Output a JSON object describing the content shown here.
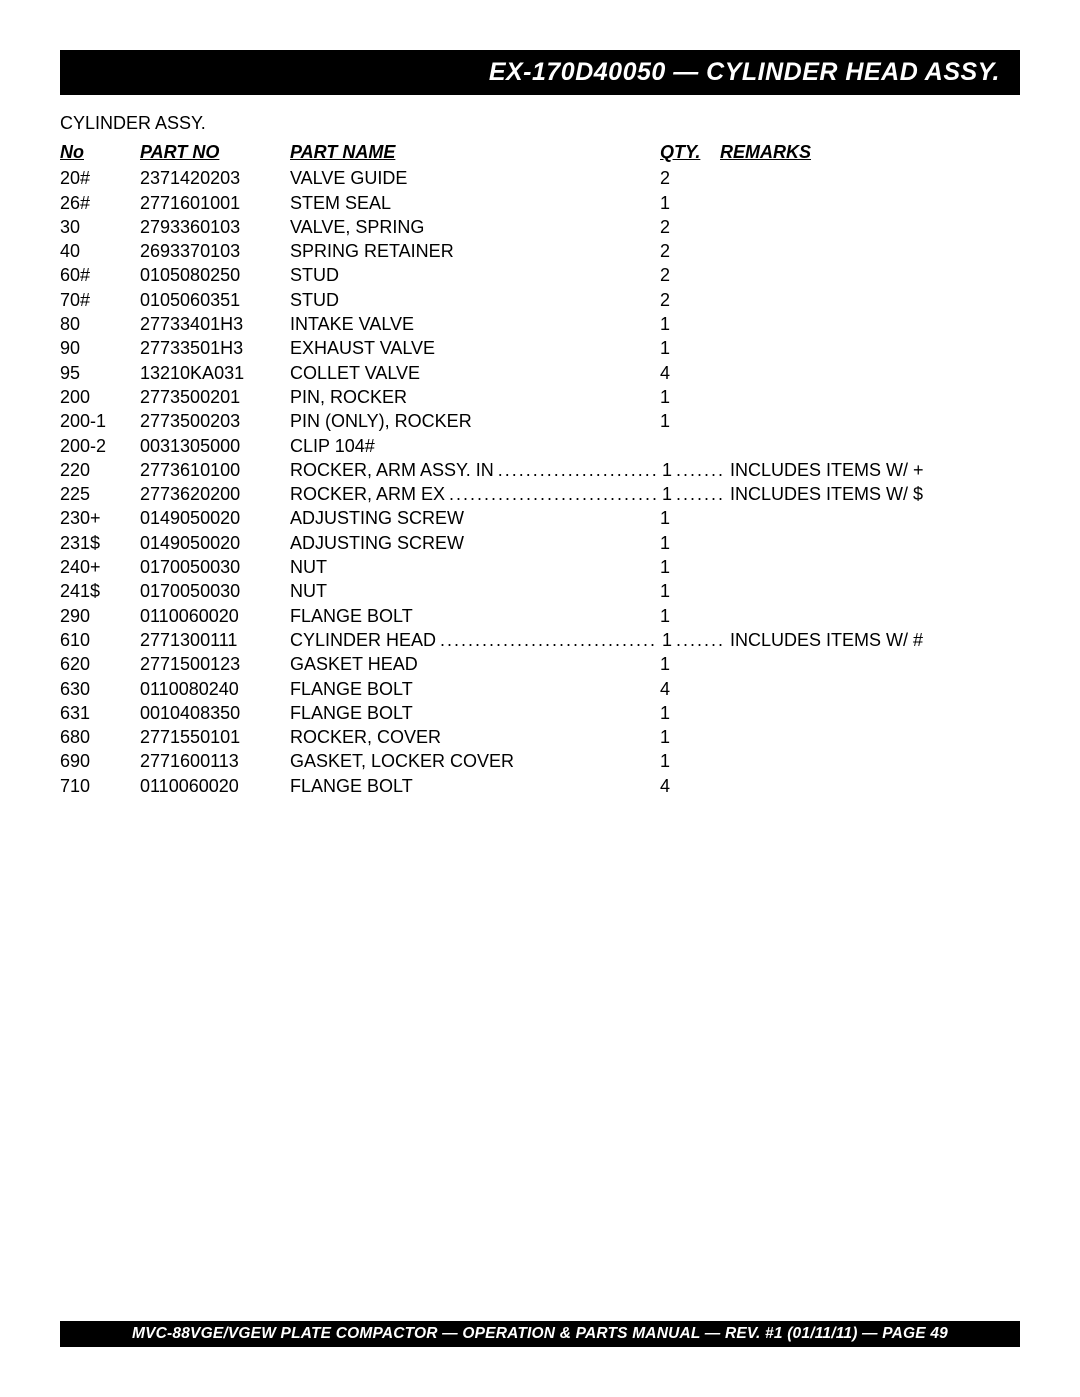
{
  "title": "EX-170D40050 — CYLINDER HEAD ASSY.",
  "subtitle": "CYLINDER ASSY.",
  "headers": {
    "no": "No",
    "partno": "PART NO",
    "name": "PART NAME",
    "qty": "QTY.",
    "remarks": "REMARKS"
  },
  "dots": "............................................................",
  "rows": [
    {
      "no": "20#",
      "partno": "2371420203",
      "name": "VALVE GUIDE",
      "qty": "2",
      "remarks": "",
      "leader": false
    },
    {
      "no": "26#",
      "partno": "2771601001",
      "name": "STEM SEAL",
      "qty": "1",
      "remarks": "",
      "leader": false
    },
    {
      "no": "30",
      "partno": "2793360103",
      "name": "VALVE, SPRING",
      "qty": "2",
      "remarks": "",
      "leader": false
    },
    {
      "no": "40",
      "partno": "2693370103",
      "name": "SPRING RETAINER",
      "qty": "2",
      "remarks": "",
      "leader": false
    },
    {
      "no": "60#",
      "partno": "0105080250",
      "name": "STUD",
      "qty": "2",
      "remarks": "",
      "leader": false
    },
    {
      "no": "70#",
      "partno": "0105060351",
      "name": "STUD",
      "qty": "2",
      "remarks": "",
      "leader": false
    },
    {
      "no": "80",
      "partno": "27733401H3",
      "name": "INTAKE VALVE",
      "qty": "1",
      "remarks": "",
      "leader": false
    },
    {
      "no": "90",
      "partno": "27733501H3",
      "name": "EXHAUST VALVE",
      "qty": "1",
      "remarks": "",
      "leader": false
    },
    {
      "no": "95",
      "partno": "13210KA031",
      "name": "COLLET VALVE",
      "qty": "4",
      "remarks": "",
      "leader": false
    },
    {
      "no": "200",
      "partno": "2773500201",
      "name": "PIN, ROCKER",
      "qty": "1",
      "remarks": "",
      "leader": false
    },
    {
      "no": "200-1",
      "partno": "2773500203",
      "name": "PIN (ONLY), ROCKER",
      "qty": "1",
      "remarks": "",
      "leader": false
    },
    {
      "no": "200-2",
      "partno": "0031305000",
      "name": "CLIP 104#",
      "qty": "",
      "remarks": "",
      "leader": false
    },
    {
      "no": "220",
      "partno": "2773610100",
      "name": "ROCKER, ARM ASSY. IN",
      "qty": "1",
      "remarks": "INCLUDES ITEMS W/ +",
      "leader": true
    },
    {
      "no": "225",
      "partno": "2773620200",
      "name": "ROCKER, ARM EX",
      "qty": "1",
      "remarks": "INCLUDES ITEMS W/ $",
      "leader": true
    },
    {
      "no": "230+",
      "partno": "0149050020",
      "name": "ADJUSTING SCREW",
      "qty": "1",
      "remarks": "",
      "leader": false
    },
    {
      "no": "231$",
      "partno": "0149050020",
      "name": "ADJUSTING SCREW",
      "qty": "1",
      "remarks": "",
      "leader": false
    },
    {
      "no": "240+",
      "partno": "0170050030",
      "name": "NUT",
      "qty": "1",
      "remarks": "",
      "leader": false
    },
    {
      "no": "241$",
      "partno": "0170050030",
      "name": "NUT",
      "qty": "1",
      "remarks": "",
      "leader": false
    },
    {
      "no": "290",
      "partno": "0110060020",
      "name": "FLANGE BOLT",
      "qty": "1",
      "remarks": "",
      "leader": false
    },
    {
      "no": "610",
      "partno": "2771300111",
      "name": "CYLINDER HEAD",
      "qty": "1",
      "remarks": "INCLUDES ITEMS W/ #",
      "leader": true
    },
    {
      "no": "620",
      "partno": "2771500123",
      "name": "GASKET HEAD",
      "qty": "1",
      "remarks": "",
      "leader": false
    },
    {
      "no": "630",
      "partno": "0110080240",
      "name": "FLANGE BOLT",
      "qty": "4",
      "remarks": "",
      "leader": false
    },
    {
      "no": "631",
      "partno": "0010408350",
      "name": "FLANGE BOLT",
      "qty": "1",
      "remarks": "",
      "leader": false
    },
    {
      "no": "680",
      "partno": "2771550101",
      "name": "ROCKER, COVER",
      "qty": "1",
      "remarks": "",
      "leader": false
    },
    {
      "no": "690",
      "partno": "2771600113",
      "name": "GASKET, LOCKER COVER",
      "qty": "1",
      "remarks": "",
      "leader": false
    },
    {
      "no": "710",
      "partno": "0110060020",
      "name": "FLANGE BOLT",
      "qty": "4",
      "remarks": "",
      "leader": false
    }
  ],
  "footer": "MVC-88VGE/VGEW PLATE COMPACTOR — OPERATION & PARTS MANUAL — REV. #1 (01/11/11) — PAGE 49"
}
